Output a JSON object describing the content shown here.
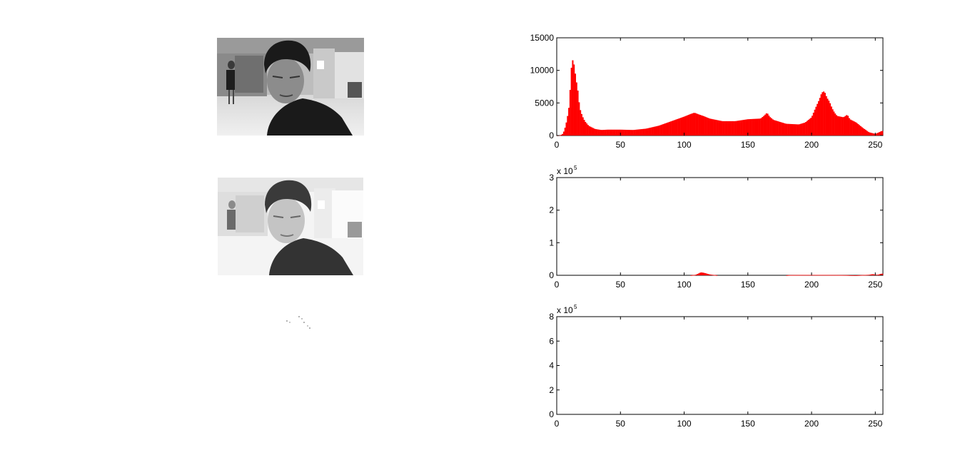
{
  "colors": {
    "bar": "#ff0000",
    "axis": "#000000",
    "background": "#ffffff"
  },
  "images": [
    {
      "name": "original-grayscale-photo",
      "description_icon": "portrait-photo-icon"
    },
    {
      "name": "brightened-grayscale-photo",
      "description_icon": "portrait-photo-icon"
    },
    {
      "name": "near-blank-output-image",
      "description_icon": "blank-image-icon"
    }
  ],
  "chart_data": [
    {
      "type": "bar",
      "title": "",
      "xlabel": "",
      "ylabel": "",
      "xlim": [
        0,
        256
      ],
      "ylim": [
        0,
        15000
      ],
      "xticks": [
        0,
        50,
        100,
        150,
        200,
        250
      ],
      "yticks": [
        0,
        5000,
        10000,
        15000
      ],
      "ytick_labels": [
        "0",
        "5000",
        "10000",
        "15000"
      ],
      "y_exponent_label": "",
      "keypoints": [
        [
          0,
          0
        ],
        [
          3,
          50
        ],
        [
          5,
          300
        ],
        [
          7,
          1500
        ],
        [
          9,
          3500
        ],
        [
          10,
          5000
        ],
        [
          11,
          9000
        ],
        [
          12,
          11800
        ],
        [
          13,
          11300
        ],
        [
          14,
          10500
        ],
        [
          15,
          8500
        ],
        [
          16,
          7800
        ],
        [
          17,
          6000
        ],
        [
          18,
          4200
        ],
        [
          20,
          3000
        ],
        [
          22,
          2200
        ],
        [
          25,
          1500
        ],
        [
          30,
          1000
        ],
        [
          35,
          850
        ],
        [
          40,
          900
        ],
        [
          50,
          900
        ],
        [
          60,
          850
        ],
        [
          70,
          1050
        ],
        [
          80,
          1500
        ],
        [
          90,
          2200
        ],
        [
          100,
          2900
        ],
        [
          105,
          3300
        ],
        [
          108,
          3500
        ],
        [
          112,
          3200
        ],
        [
          115,
          3000
        ],
        [
          120,
          2600
        ],
        [
          130,
          2200
        ],
        [
          140,
          2200
        ],
        [
          150,
          2500
        ],
        [
          160,
          2600
        ],
        [
          163,
          3100
        ],
        [
          165,
          3500
        ],
        [
          167,
          2900
        ],
        [
          170,
          2400
        ],
        [
          180,
          1800
        ],
        [
          190,
          1700
        ],
        [
          195,
          2000
        ],
        [
          200,
          2800
        ],
        [
          203,
          4200
        ],
        [
          206,
          5500
        ],
        [
          208,
          6600
        ],
        [
          210,
          6800
        ],
        [
          212,
          5800
        ],
        [
          214,
          5200
        ],
        [
          216,
          4200
        ],
        [
          218,
          3500
        ],
        [
          220,
          3000
        ],
        [
          225,
          2800
        ],
        [
          228,
          3200
        ],
        [
          230,
          2500
        ],
        [
          235,
          2000
        ],
        [
          240,
          1200
        ],
        [
          245,
          500
        ],
        [
          250,
          250
        ],
        [
          253,
          500
        ],
        [
          255,
          700
        ],
        [
          256,
          700
        ]
      ]
    },
    {
      "type": "bar",
      "title": "",
      "xlabel": "",
      "ylabel": "",
      "xlim": [
        0,
        256
      ],
      "ylim": [
        0,
        300000
      ],
      "xticks": [
        0,
        50,
        100,
        150,
        200,
        250
      ],
      "yticks": [
        0,
        100000,
        200000,
        300000
      ],
      "ytick_labels": [
        "0",
        "1",
        "2",
        "3"
      ],
      "y_exponent_label": "x 10",
      "y_exponent_power": "5",
      "keypoints": [
        [
          0,
          0
        ],
        [
          105,
          0
        ],
        [
          109,
          1500
        ],
        [
          111,
          5000
        ],
        [
          113,
          9000
        ],
        [
          115,
          8000
        ],
        [
          117,
          6000
        ],
        [
          119,
          3500
        ],
        [
          121,
          2000
        ],
        [
          124,
          800
        ],
        [
          126,
          0
        ],
        [
          180,
          0
        ],
        [
          182,
          600
        ],
        [
          190,
          900
        ],
        [
          200,
          1100
        ],
        [
          210,
          1000
        ],
        [
          220,
          800
        ],
        [
          228,
          500
        ],
        [
          230,
          200
        ],
        [
          235,
          0
        ],
        [
          245,
          1500
        ],
        [
          248,
          3500
        ],
        [
          250,
          2000
        ],
        [
          252,
          1500
        ],
        [
          254,
          4000
        ],
        [
          255,
          5000
        ],
        [
          256,
          5000
        ]
      ]
    },
    {
      "type": "bar",
      "title": "",
      "xlabel": "",
      "ylabel": "",
      "xlim": [
        0,
        256
      ],
      "ylim": [
        0,
        800000
      ],
      "xticks": [
        0,
        50,
        100,
        150,
        200,
        250
      ],
      "yticks": [
        0,
        200000,
        400000,
        600000,
        800000
      ],
      "ytick_labels": [
        "0",
        "2",
        "4",
        "6",
        "8"
      ],
      "y_exponent_label": "x 10",
      "y_exponent_power": "5",
      "keypoints": [
        [
          0,
          0
        ],
        [
          256,
          0
        ]
      ]
    }
  ]
}
